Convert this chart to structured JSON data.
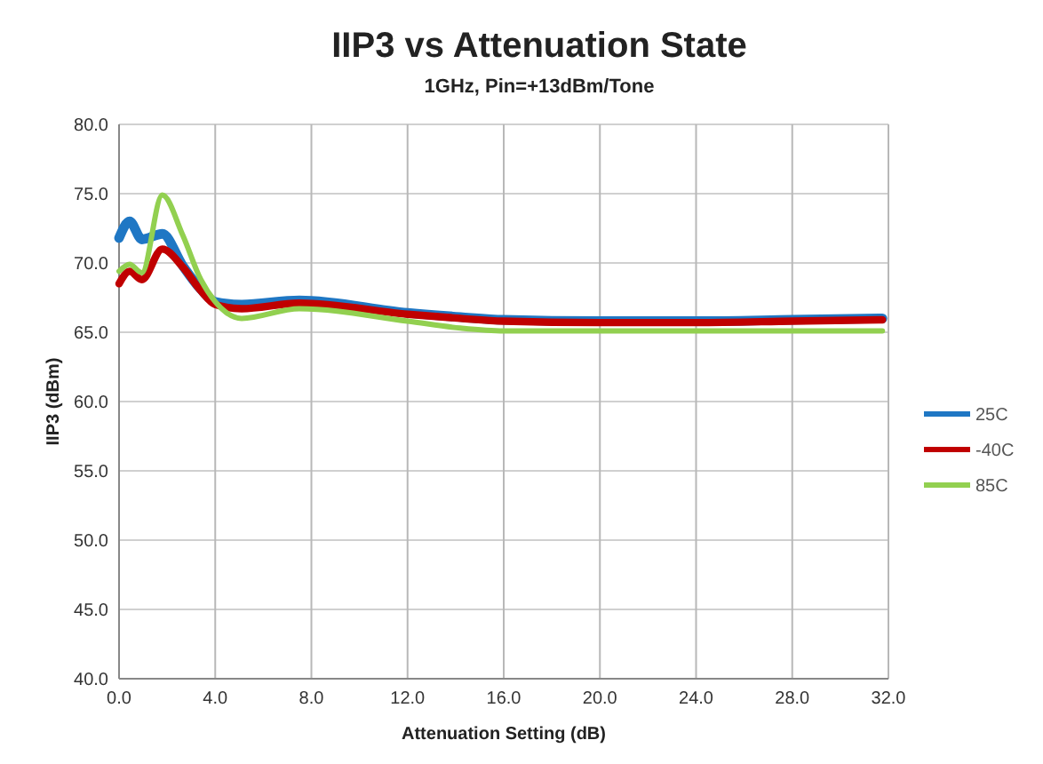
{
  "chart_data": {
    "type": "line",
    "title": "IIP3 vs Attenuation State",
    "subtitle": "1GHz, Pin=+13dBm/Tone",
    "xlabel": "Attenuation Setting (dB)",
    "ylabel": "IIP3 (dBm)",
    "xlim": [
      0,
      32
    ],
    "ylim": [
      40,
      80
    ],
    "xticks": [
      {
        "value": 0,
        "label": "0.0"
      },
      {
        "value": 4,
        "label": "4.0"
      },
      {
        "value": 8,
        "label": "8.0"
      },
      {
        "value": 12,
        "label": "12.0"
      },
      {
        "value": 16,
        "label": "16.0"
      },
      {
        "value": 20,
        "label": "20.0"
      },
      {
        "value": 24,
        "label": "24.0"
      },
      {
        "value": 28,
        "label": "28.0"
      },
      {
        "value": 32,
        "label": "32.0"
      }
    ],
    "yticks": [
      {
        "value": 40,
        "label": "40.0"
      },
      {
        "value": 45,
        "label": "45.0"
      },
      {
        "value": 50,
        "label": "50.0"
      },
      {
        "value": 55,
        "label": "55.0"
      },
      {
        "value": 60,
        "label": "60.0"
      },
      {
        "value": 65,
        "label": "65.0"
      },
      {
        "value": 70,
        "label": "70.0"
      },
      {
        "value": 75,
        "label": "75.0"
      },
      {
        "value": 80,
        "label": "80.0"
      }
    ],
    "grid": true,
    "legend": "right",
    "marker": "none",
    "line_style": "solid",
    "x": [
      0,
      0.44,
      0.95,
      1.8,
      2.65,
      3.4,
      4.0,
      5.1,
      7.5,
      12,
      14.2,
      16,
      20,
      24,
      28,
      31.75
    ],
    "series": [
      {
        "name": "25C",
        "color": "#1f77c4",
        "values": [
          71.8,
          73.0,
          71.7,
          72.1,
          69.8,
          68.1,
          67.2,
          67.0,
          67.3,
          66.4,
          66.1,
          65.9,
          65.8,
          65.8,
          65.9,
          66.0
        ]
      },
      {
        "name": "-40C",
        "color": "#c00000",
        "values": [
          68.5,
          69.4,
          68.8,
          71.0,
          69.7,
          68.0,
          67.0,
          66.7,
          67.1,
          66.3,
          66.0,
          65.8,
          65.7,
          65.7,
          65.8,
          65.9
        ]
      },
      {
        "name": "85C",
        "color": "#92d050",
        "values": [
          69.4,
          69.9,
          69.3,
          74.9,
          72.0,
          68.8,
          67.2,
          66.0,
          66.7,
          65.8,
          65.3,
          65.1,
          65.1,
          65.1,
          65.1,
          65.1
        ]
      }
    ]
  }
}
